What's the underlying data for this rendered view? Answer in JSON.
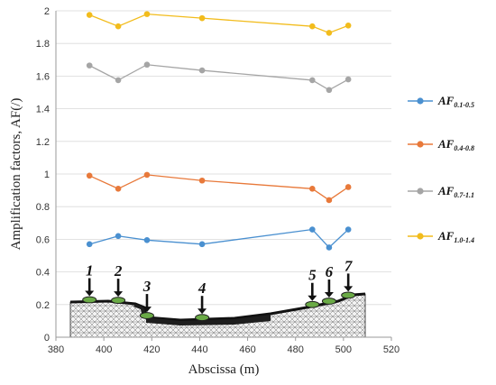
{
  "chart_data": {
    "type": "line",
    "title": "",
    "xlabel": "Abscissa (m)",
    "ylabel": "Amplification factors, AF(/)",
    "xlim": [
      380,
      520
    ],
    "ylim": [
      0,
      2
    ],
    "xticks": [
      380,
      400,
      420,
      440,
      460,
      480,
      500,
      520
    ],
    "yticks": [
      0,
      0.2,
      0.4,
      0.6,
      0.8,
      1,
      1.2,
      1.4,
      1.6,
      1.8,
      2
    ],
    "grid": "horizontal",
    "legend_position": "right",
    "x": [
      394,
      406,
      418,
      441,
      487,
      494,
      502
    ],
    "series": [
      {
        "name": "AF",
        "sub": "0.1-0.5",
        "color": "#4a90d0",
        "values": [
          0.57,
          0.62,
          0.595,
          0.57,
          0.66,
          0.55,
          0.66
        ]
      },
      {
        "name": "AF",
        "sub": "0.4-0.8",
        "color": "#e8793a",
        "values": [
          0.99,
          0.91,
          0.995,
          0.96,
          0.91,
          0.84,
          0.92
        ]
      },
      {
        "name": "AF",
        "sub": "0.7-1.1",
        "color": "#a5a5a5",
        "values": [
          1.665,
          1.575,
          1.67,
          1.635,
          1.575,
          1.515,
          1.58
        ]
      },
      {
        "name": "AF",
        "sub": "1.0-1.4",
        "color": "#f2bc1c",
        "values": [
          1.975,
          1.905,
          1.98,
          1.955,
          1.905,
          1.865,
          1.91
        ]
      }
    ],
    "sites": {
      "labels": [
        "1",
        "2",
        "3",
        "4",
        "5",
        "6",
        "7"
      ],
      "x": [
        394,
        406,
        418,
        441,
        487,
        494,
        502
      ]
    }
  }
}
